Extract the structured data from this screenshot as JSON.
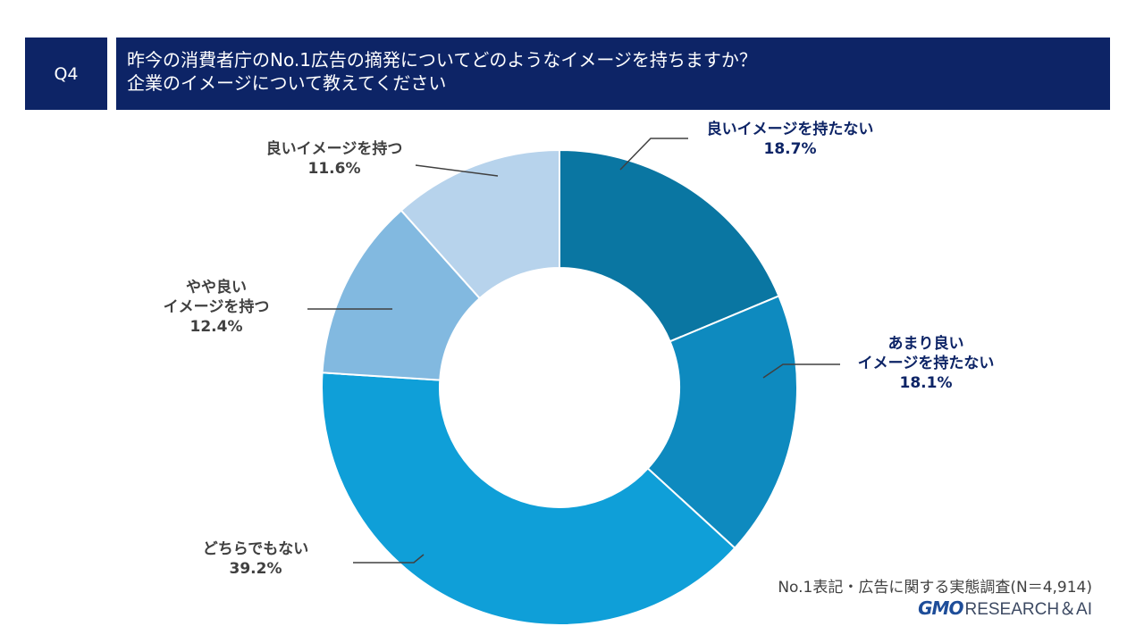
{
  "header": {
    "question_no": "Q4",
    "question_line1": "昨今の消費者庁のNo.1広告の摘発についてどのようなイメージを持ちますか？",
    "question_line2": "企業のイメージについて教えてください"
  },
  "footer": {
    "source": "No.1表記・広告に関する実態調査(N＝4,914)",
    "logo_mark": "GMO",
    "logo_text": "RESEARCH＆AI"
  },
  "chart_data": {
    "type": "pie",
    "donut": true,
    "sample_size": 4914,
    "slices": [
      {
        "label_lines": [
          "良いイメージを持たない"
        ],
        "pct_text": "18.7%",
        "value": 18.7,
        "color": "#0a76a2",
        "label_color": "#0d2466"
      },
      {
        "label_lines": [
          "あまり良い",
          "イメージを持たない"
        ],
        "pct_text": "18.1%",
        "value": 18.1,
        "color": "#0e8abf",
        "label_color": "#0d2466"
      },
      {
        "label_lines": [
          "どちらでもない"
        ],
        "pct_text": "39.2%",
        "value": 39.2,
        "color": "#0f9fd8",
        "label_color": "#404040"
      },
      {
        "label_lines": [
          "やや良い",
          "イメージを持つ"
        ],
        "pct_text": "12.4%",
        "value": 12.4,
        "color": "#82b9e0",
        "label_color": "#404040"
      },
      {
        "label_lines": [
          "良いイメージを持つ"
        ],
        "pct_text": "11.6%",
        "value": 11.6,
        "color": "#b7d3ec",
        "label_color": "#404040"
      }
    ]
  }
}
